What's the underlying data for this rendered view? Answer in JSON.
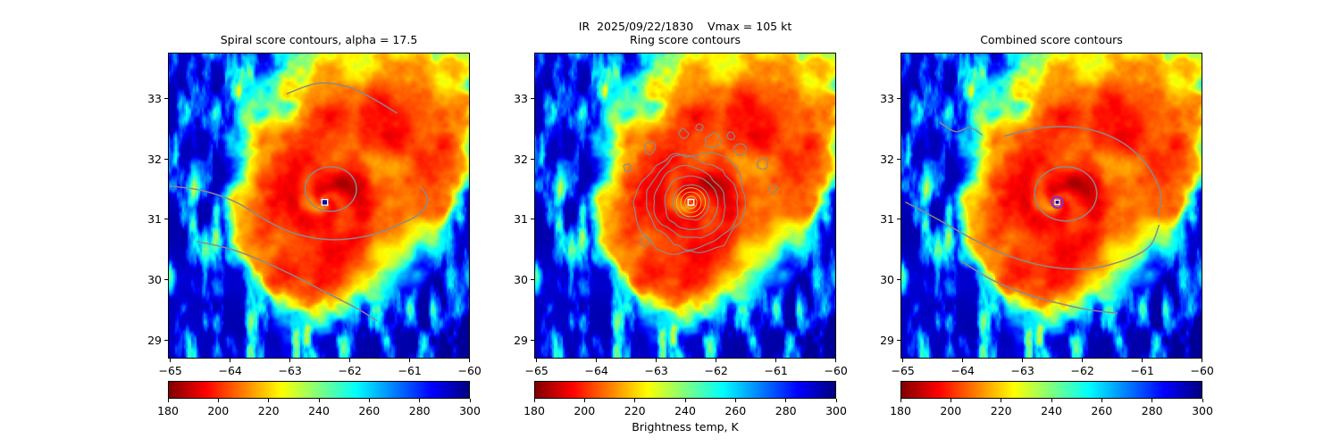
{
  "chart_data": {
    "type": "heatmap",
    "suptitle": "IR  2025/09/22/1830    Vmax = 105 kt",
    "value_label": "Brightness temp, K",
    "colormap": "jet_reversed",
    "value_range": [
      180,
      300
    ],
    "colorbar_tick_values": [
      180,
      200,
      220,
      240,
      260,
      280,
      300
    ],
    "colorbar_tick_labels": [
      "180",
      "200",
      "220",
      "240",
      "260",
      "280",
      "300"
    ],
    "x_tick_values": [
      -65,
      -64,
      -63,
      -62,
      -61,
      -60
    ],
    "x_tick_labels": [
      "−65",
      "−64",
      "−63",
      "−62",
      "−61",
      "−60"
    ],
    "y_tick_values": [
      33,
      32,
      31,
      30,
      29
    ],
    "y_tick_labels": [
      "33",
      "32",
      "31",
      "30",
      "29"
    ],
    "lon_range": [
      -65.04,
      -59.995
    ],
    "lat_range": [
      28.69,
      33.76
    ],
    "storm_center": {
      "lon": -62.42,
      "lat": 31.28
    },
    "contour_color": "#8a8a8a",
    "panels": [
      {
        "key": "spiral",
        "title": "Spiral score contours, alpha = 17.5",
        "contour_width": 1.5,
        "paths": [
          [
            [
              -63.05,
              33.08
            ],
            [
              -62.55,
              33.25
            ],
            [
              -62.05,
              33.2
            ],
            [
              -61.6,
              32.99
            ],
            [
              -61.22,
              32.76
            ]
          ],
          [
            [
              -65.0,
              31.55
            ],
            [
              -64.45,
              31.47
            ],
            [
              -63.9,
              31.28
            ],
            [
              -63.38,
              30.97
            ],
            [
              -62.88,
              30.75
            ],
            [
              -62.28,
              30.66
            ],
            [
              -61.68,
              30.73
            ],
            [
              -61.18,
              30.91
            ],
            [
              -60.82,
              31.1
            ],
            [
              -60.7,
              31.32
            ],
            [
              -60.8,
              31.52
            ]
          ],
          [
            [
              -64.55,
              30.63
            ],
            [
              -63.98,
              30.5
            ],
            [
              -63.4,
              30.28
            ],
            [
              -62.85,
              30.02
            ],
            [
              -62.35,
              29.76
            ],
            [
              -61.88,
              29.52
            ],
            [
              -61.55,
              29.32
            ]
          ]
        ],
        "loops": [
          {
            "cx": -62.32,
            "cy": 31.5,
            "rx": 0.43,
            "ry": 0.37
          }
        ],
        "markers": [
          {
            "shape": "dot",
            "color": "#0a0a99",
            "r": 4.5
          },
          {
            "shape": "open-square",
            "color": "#ffffff",
            "size": 6.5,
            "width": 1.4
          }
        ]
      },
      {
        "key": "ring",
        "title": "Ring score contours",
        "contour_width": 1.2,
        "rings": {
          "radii": [
            0.3,
            0.45,
            0.6,
            0.75,
            0.9
          ],
          "wiggle": [
            0.1,
            0.14,
            0.18,
            0.22,
            0.26
          ]
        },
        "blobs": [
          [
            -62.05,
            32.3,
            0.13
          ],
          [
            -61.6,
            32.15,
            0.1
          ],
          [
            -61.22,
            31.92,
            0.09
          ],
          [
            -62.55,
            32.42,
            0.08
          ],
          [
            -63.1,
            32.18,
            0.1
          ],
          [
            -63.48,
            31.85,
            0.07
          ],
          [
            -61.05,
            31.5,
            0.07
          ],
          [
            -63.2,
            30.62,
            0.08
          ],
          [
            -62.28,
            32.52,
            0.06
          ],
          [
            -61.75,
            32.38,
            0.07
          ]
        ],
        "extra_rings": {
          "color": "#d2bf3c",
          "radii": [
            0.1,
            0.17,
            0.24
          ],
          "width": 1
        },
        "markers": [
          {
            "shape": "open-square",
            "color": "#ffffff",
            "size": 6.5,
            "width": 1.4
          }
        ]
      },
      {
        "key": "combined",
        "title": "Combined score contours",
        "contour_width": 1.5,
        "paths": [
          [
            [
              -64.38,
              32.6
            ],
            [
              -64.12,
              32.45
            ],
            [
              -63.88,
              32.52
            ],
            [
              -63.68,
              32.4
            ]
          ],
          [
            [
              -63.3,
              32.38
            ],
            [
              -62.65,
              32.52
            ],
            [
              -61.95,
              32.5
            ],
            [
              -61.35,
              32.28
            ],
            [
              -60.93,
              31.9
            ],
            [
              -60.7,
              31.45
            ],
            [
              -60.73,
              31.05
            ]
          ],
          [
            [
              -64.95,
              31.28
            ],
            [
              -64.42,
              31.0
            ],
            [
              -63.85,
              30.68
            ],
            [
              -63.25,
              30.4
            ],
            [
              -62.6,
              30.22
            ],
            [
              -61.92,
              30.18
            ],
            [
              -61.3,
              30.32
            ],
            [
              -60.88,
              30.55
            ],
            [
              -60.72,
              30.9
            ]
          ],
          [
            [
              -64.02,
              30.3
            ],
            [
              -63.52,
              30.0
            ],
            [
              -63.0,
              29.78
            ],
            [
              -62.45,
              29.62
            ],
            [
              -61.9,
              29.5
            ],
            [
              -61.42,
              29.44
            ]
          ]
        ],
        "loops": [
          {
            "cx": -62.28,
            "cy": 31.42,
            "rx": 0.52,
            "ry": 0.45
          }
        ],
        "markers": [
          {
            "shape": "dot",
            "color": "#0a0a99",
            "r": 3.5
          },
          {
            "shape": "open-circle",
            "color": "#8b2fc9",
            "r": 6.2,
            "width": 2.2
          },
          {
            "shape": "open-square",
            "color": "#ffffff",
            "size": 5,
            "width": 1.3
          }
        ]
      }
    ],
    "field": {
      "center": [
        -62.42,
        31.28
      ],
      "base_radius": 1.95,
      "bulges": [
        [
          0.85,
          0.55,
          1.7
        ],
        [
          -1.5,
          0.6,
          0.5
        ],
        [
          3.14,
          0.7,
          -0.45
        ],
        [
          -0.7,
          0.45,
          -0.55
        ]
      ],
      "noise_amp": 0.8,
      "spiral_amp": 0.22,
      "cold_core_temp": 206,
      "warm_temp": 294,
      "se_blob": [
        -60.15,
        29.1,
        0.8
      ],
      "seed": 7
    }
  }
}
